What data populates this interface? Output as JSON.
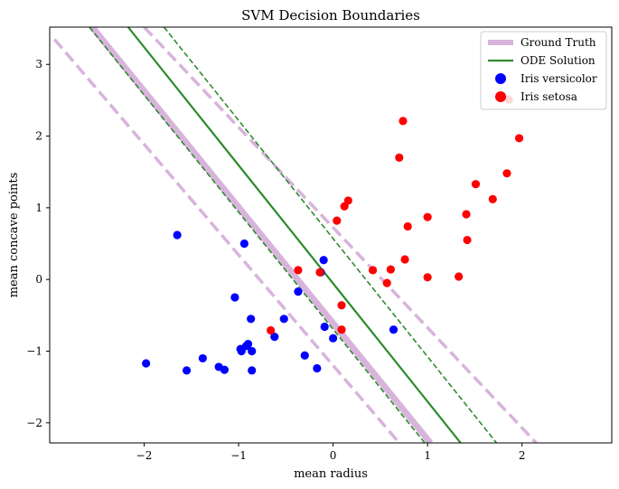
{
  "chart_data": {
    "type": "scatter",
    "title": "SVM Decision Boundaries",
    "xlabel": "mean radius",
    "ylabel": "mean concave points",
    "xlim": [
      -3.0,
      2.95
    ],
    "ylim": [
      -2.28,
      3.52
    ],
    "xticks": [
      -2,
      -1,
      0,
      1,
      2
    ],
    "xtick_labels": [
      "−2",
      "−1",
      "0",
      "1",
      "2"
    ],
    "yticks": [
      -2,
      -1,
      0,
      1,
      2,
      3
    ],
    "ytick_labels": [
      "−2",
      "−1",
      "0",
      "1",
      "2",
      "3"
    ],
    "grid": false,
    "legend_position": "top-right",
    "lines": [
      {
        "name": "Ground Truth",
        "style": "solid",
        "color": "#d8b4dc",
        "endpoints": [
          [
            -2.55,
            3.52
          ],
          [
            1.03,
            -2.28
          ]
        ]
      },
      {
        "name": "",
        "style": "dashed",
        "color": "#d8b4dc",
        "endpoints": [
          [
            -2.95,
            3.35
          ],
          [
            0.7,
            -2.28
          ]
        ]
      },
      {
        "name": "",
        "style": "dashed",
        "color": "#d8b4dc",
        "endpoints": [
          [
            -2.0,
            3.52
          ],
          [
            2.15,
            -2.28
          ]
        ]
      },
      {
        "name": "ODE Solution",
        "style": "solid",
        "color": "#2e8b2e",
        "endpoints": [
          [
            -2.17,
            3.52
          ],
          [
            1.35,
            -2.28
          ]
        ]
      },
      {
        "name": "",
        "style": "dashed",
        "color": "#2e8b2e",
        "endpoints": [
          [
            -2.58,
            3.52
          ],
          [
            0.97,
            -2.28
          ]
        ]
      },
      {
        "name": "",
        "style": "dashed",
        "color": "#2e8b2e",
        "endpoints": [
          [
            -1.79,
            3.52
          ],
          [
            1.73,
            -2.28
          ]
        ]
      }
    ],
    "series": [
      {
        "name": "Iris versicolor",
        "color": "#0000ff",
        "points": [
          [
            -1.65,
            0.62
          ],
          [
            -0.94,
            0.5
          ],
          [
            -1.04,
            -0.25
          ],
          [
            -0.87,
            -0.55
          ],
          [
            -0.52,
            -0.55
          ],
          [
            -0.37,
            -0.17
          ],
          [
            -0.1,
            0.27
          ],
          [
            -0.13,
            0.1
          ],
          [
            -0.62,
            -0.8
          ],
          [
            -0.9,
            -0.9
          ],
          [
            -0.92,
            -0.93
          ],
          [
            -0.98,
            -0.97
          ],
          [
            -0.97,
            -1.0
          ],
          [
            -0.86,
            -1.0
          ],
          [
            -1.38,
            -1.1
          ],
          [
            -1.21,
            -1.22
          ],
          [
            -1.15,
            -1.26
          ],
          [
            -0.86,
            -1.27
          ],
          [
            -1.55,
            -1.27
          ],
          [
            -1.98,
            -1.17
          ],
          [
            -0.3,
            -1.06
          ],
          [
            -0.17,
            -1.24
          ],
          [
            -0.09,
            -0.66
          ],
          [
            0.0,
            -0.82
          ],
          [
            0.64,
            -0.7
          ]
        ]
      },
      {
        "name": "Iris setosa",
        "color": "#ff0000",
        "points": [
          [
            0.74,
            2.21
          ],
          [
            1.86,
            2.51
          ],
          [
            1.97,
            1.97
          ],
          [
            0.7,
            1.7
          ],
          [
            1.84,
            1.48
          ],
          [
            1.51,
            1.33
          ],
          [
            1.69,
            1.12
          ],
          [
            0.16,
            1.1
          ],
          [
            0.12,
            1.02
          ],
          [
            1.41,
            0.91
          ],
          [
            1.0,
            0.87
          ],
          [
            0.04,
            0.82
          ],
          [
            0.79,
            0.74
          ],
          [
            1.42,
            0.55
          ],
          [
            0.76,
            0.28
          ],
          [
            -0.37,
            0.13
          ],
          [
            0.42,
            0.13
          ],
          [
            0.61,
            0.14
          ],
          [
            -0.14,
            0.1
          ],
          [
            1.0,
            0.03
          ],
          [
            1.33,
            0.04
          ],
          [
            0.57,
            -0.05
          ],
          [
            0.09,
            -0.36
          ],
          [
            0.09,
            -0.7
          ],
          [
            -0.66,
            -0.71
          ]
        ]
      }
    ],
    "legend": [
      {
        "label": "Ground Truth",
        "kind": "line",
        "color": "#d8b4dc"
      },
      {
        "label": "ODE Solution",
        "kind": "line",
        "color": "#2e8b2e"
      },
      {
        "label": "Iris versicolor",
        "kind": "marker",
        "color": "#0000ff"
      },
      {
        "label": "Iris setosa",
        "kind": "marker",
        "color": "#ff0000"
      }
    ]
  }
}
